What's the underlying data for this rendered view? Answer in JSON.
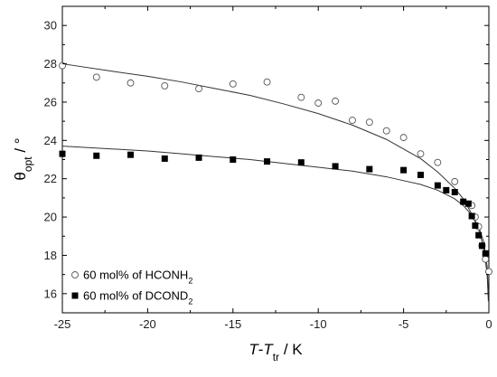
{
  "chart_data": {
    "type": "scatter",
    "title": "",
    "xlabel": {
      "parts": [
        {
          "text": "T",
          "style": "italic"
        },
        {
          "text": "-",
          "style": "normal"
        },
        {
          "text": "T",
          "style": "italic"
        },
        {
          "text": "tr",
          "style": "sub"
        },
        {
          "text": " / K",
          "style": "normal"
        }
      ]
    },
    "ylabel": {
      "parts": [
        {
          "text": "θ",
          "style": "normal"
        },
        {
          "text": "opt",
          "style": "sub"
        },
        {
          "text": " / °",
          "style": "normal"
        }
      ]
    },
    "xlim": [
      -25,
      0
    ],
    "ylim": [
      15,
      31
    ],
    "x_ticks": [
      -25,
      -20,
      -15,
      -10,
      -5,
      0
    ],
    "x_tick_labels": [
      "-25",
      "-20",
      "-15",
      "-10",
      "-5",
      "0"
    ],
    "y_ticks": [
      16,
      18,
      20,
      22,
      24,
      26,
      28,
      30
    ],
    "y_tick_labels": [
      "16",
      "18",
      "20",
      "22",
      "24",
      "26",
      "28",
      "30"
    ],
    "grid": false,
    "legend_position": "bottom-left",
    "series": [
      {
        "name_parts": [
          {
            "text": "60 mol% of HCONH",
            "style": "normal"
          },
          {
            "text": "2",
            "style": "sub"
          }
        ],
        "marker": "open-circle",
        "color": "#555555",
        "x": [
          -25.0,
          -23.0,
          -21.0,
          -19.0,
          -17.0,
          -15.0,
          -13.0,
          -11.0,
          -10.0,
          -9.0,
          -8.0,
          -7.0,
          -6.0,
          -5.0,
          -4.0,
          -3.0,
          -2.0,
          -1.0,
          -0.8,
          -0.6,
          -0.4,
          -0.2,
          0.0
        ],
        "y": [
          27.9,
          27.3,
          27.0,
          26.85,
          26.7,
          26.95,
          27.05,
          26.25,
          25.95,
          26.05,
          25.05,
          24.95,
          24.5,
          24.15,
          23.3,
          22.85,
          21.85,
          20.6,
          20.0,
          19.5,
          18.5,
          17.8,
          17.15
        ]
      },
      {
        "name_parts": [
          {
            "text": "60 mol% of DCOND",
            "style": "normal"
          },
          {
            "text": "2",
            "style": "sub"
          }
        ],
        "marker": "filled-square",
        "color": "#000000",
        "x": [
          -25.0,
          -23.0,
          -21.0,
          -19.0,
          -17.0,
          -15.0,
          -13.0,
          -11.0,
          -9.0,
          -7.0,
          -5.0,
          -4.0,
          -3.0,
          -2.5,
          -2.0,
          -1.5,
          -1.2,
          -1.0,
          -0.8,
          -0.6,
          -0.4,
          -0.2
        ],
        "y": [
          23.3,
          23.2,
          23.25,
          23.05,
          23.1,
          23.0,
          22.9,
          22.85,
          22.65,
          22.5,
          22.45,
          22.2,
          21.65,
          21.4,
          21.3,
          20.8,
          20.7,
          20.05,
          19.55,
          19.05,
          18.5,
          18.1
        ]
      }
    ],
    "fit_curves": [
      {
        "for_series": 0,
        "stroke": "#333333",
        "x": [
          -25,
          -22,
          -20,
          -18,
          -16,
          -14,
          -12,
          -10,
          -8,
          -6,
          -5,
          -4,
          -3,
          -2,
          -1.5,
          -1,
          -0.6,
          -0.3,
          -0.1,
          -0.03
        ],
        "y": [
          28.0,
          27.6,
          27.35,
          27.05,
          26.7,
          26.35,
          25.9,
          25.4,
          24.8,
          24.05,
          23.55,
          23.05,
          22.35,
          21.5,
          20.95,
          20.15,
          19.35,
          18.4,
          17.0,
          15.6
        ]
      },
      {
        "for_series": 1,
        "stroke": "#333333",
        "x": [
          -25,
          -22,
          -20,
          -18,
          -16,
          -14,
          -12,
          -10,
          -8,
          -6,
          -5,
          -4,
          -3,
          -2,
          -1.5,
          -1,
          -0.6,
          -0.3,
          -0.1,
          -0.03
        ],
        "y": [
          23.7,
          23.55,
          23.45,
          23.3,
          23.15,
          23.0,
          22.8,
          22.6,
          22.4,
          22.1,
          21.9,
          21.7,
          21.4,
          20.95,
          20.6,
          20.1,
          19.5,
          18.7,
          17.4,
          15.9
        ]
      }
    ]
  }
}
